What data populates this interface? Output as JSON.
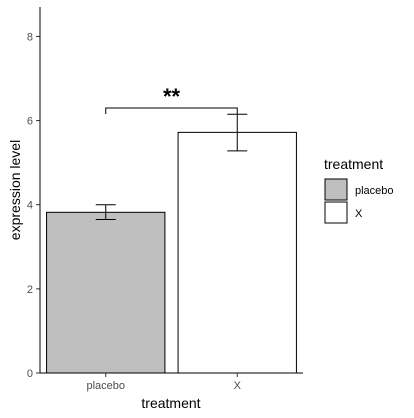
{
  "chart_data": {
    "type": "bar",
    "categories": [
      "placebo",
      "X"
    ],
    "values": [
      3.82,
      5.72
    ],
    "error_low": [
      3.65,
      5.28
    ],
    "error_high": [
      4.0,
      6.15
    ],
    "fills": [
      "#bfbfbf",
      "#ffffff"
    ],
    "xlabel": "treatment",
    "ylabel": "expression level",
    "ylim": [
      0,
      8.7
    ],
    "yticks": [
      0,
      2,
      4,
      6,
      8
    ],
    "grid": false,
    "legend": {
      "title": "treatment",
      "position": "right",
      "entries": [
        {
          "label": "placebo",
          "color": "#bfbfbf"
        },
        {
          "label": "X",
          "color": "#ffffff"
        }
      ]
    },
    "annotation": {
      "text": "**",
      "between": [
        "placebo",
        "X"
      ],
      "y": 6.3
    }
  }
}
